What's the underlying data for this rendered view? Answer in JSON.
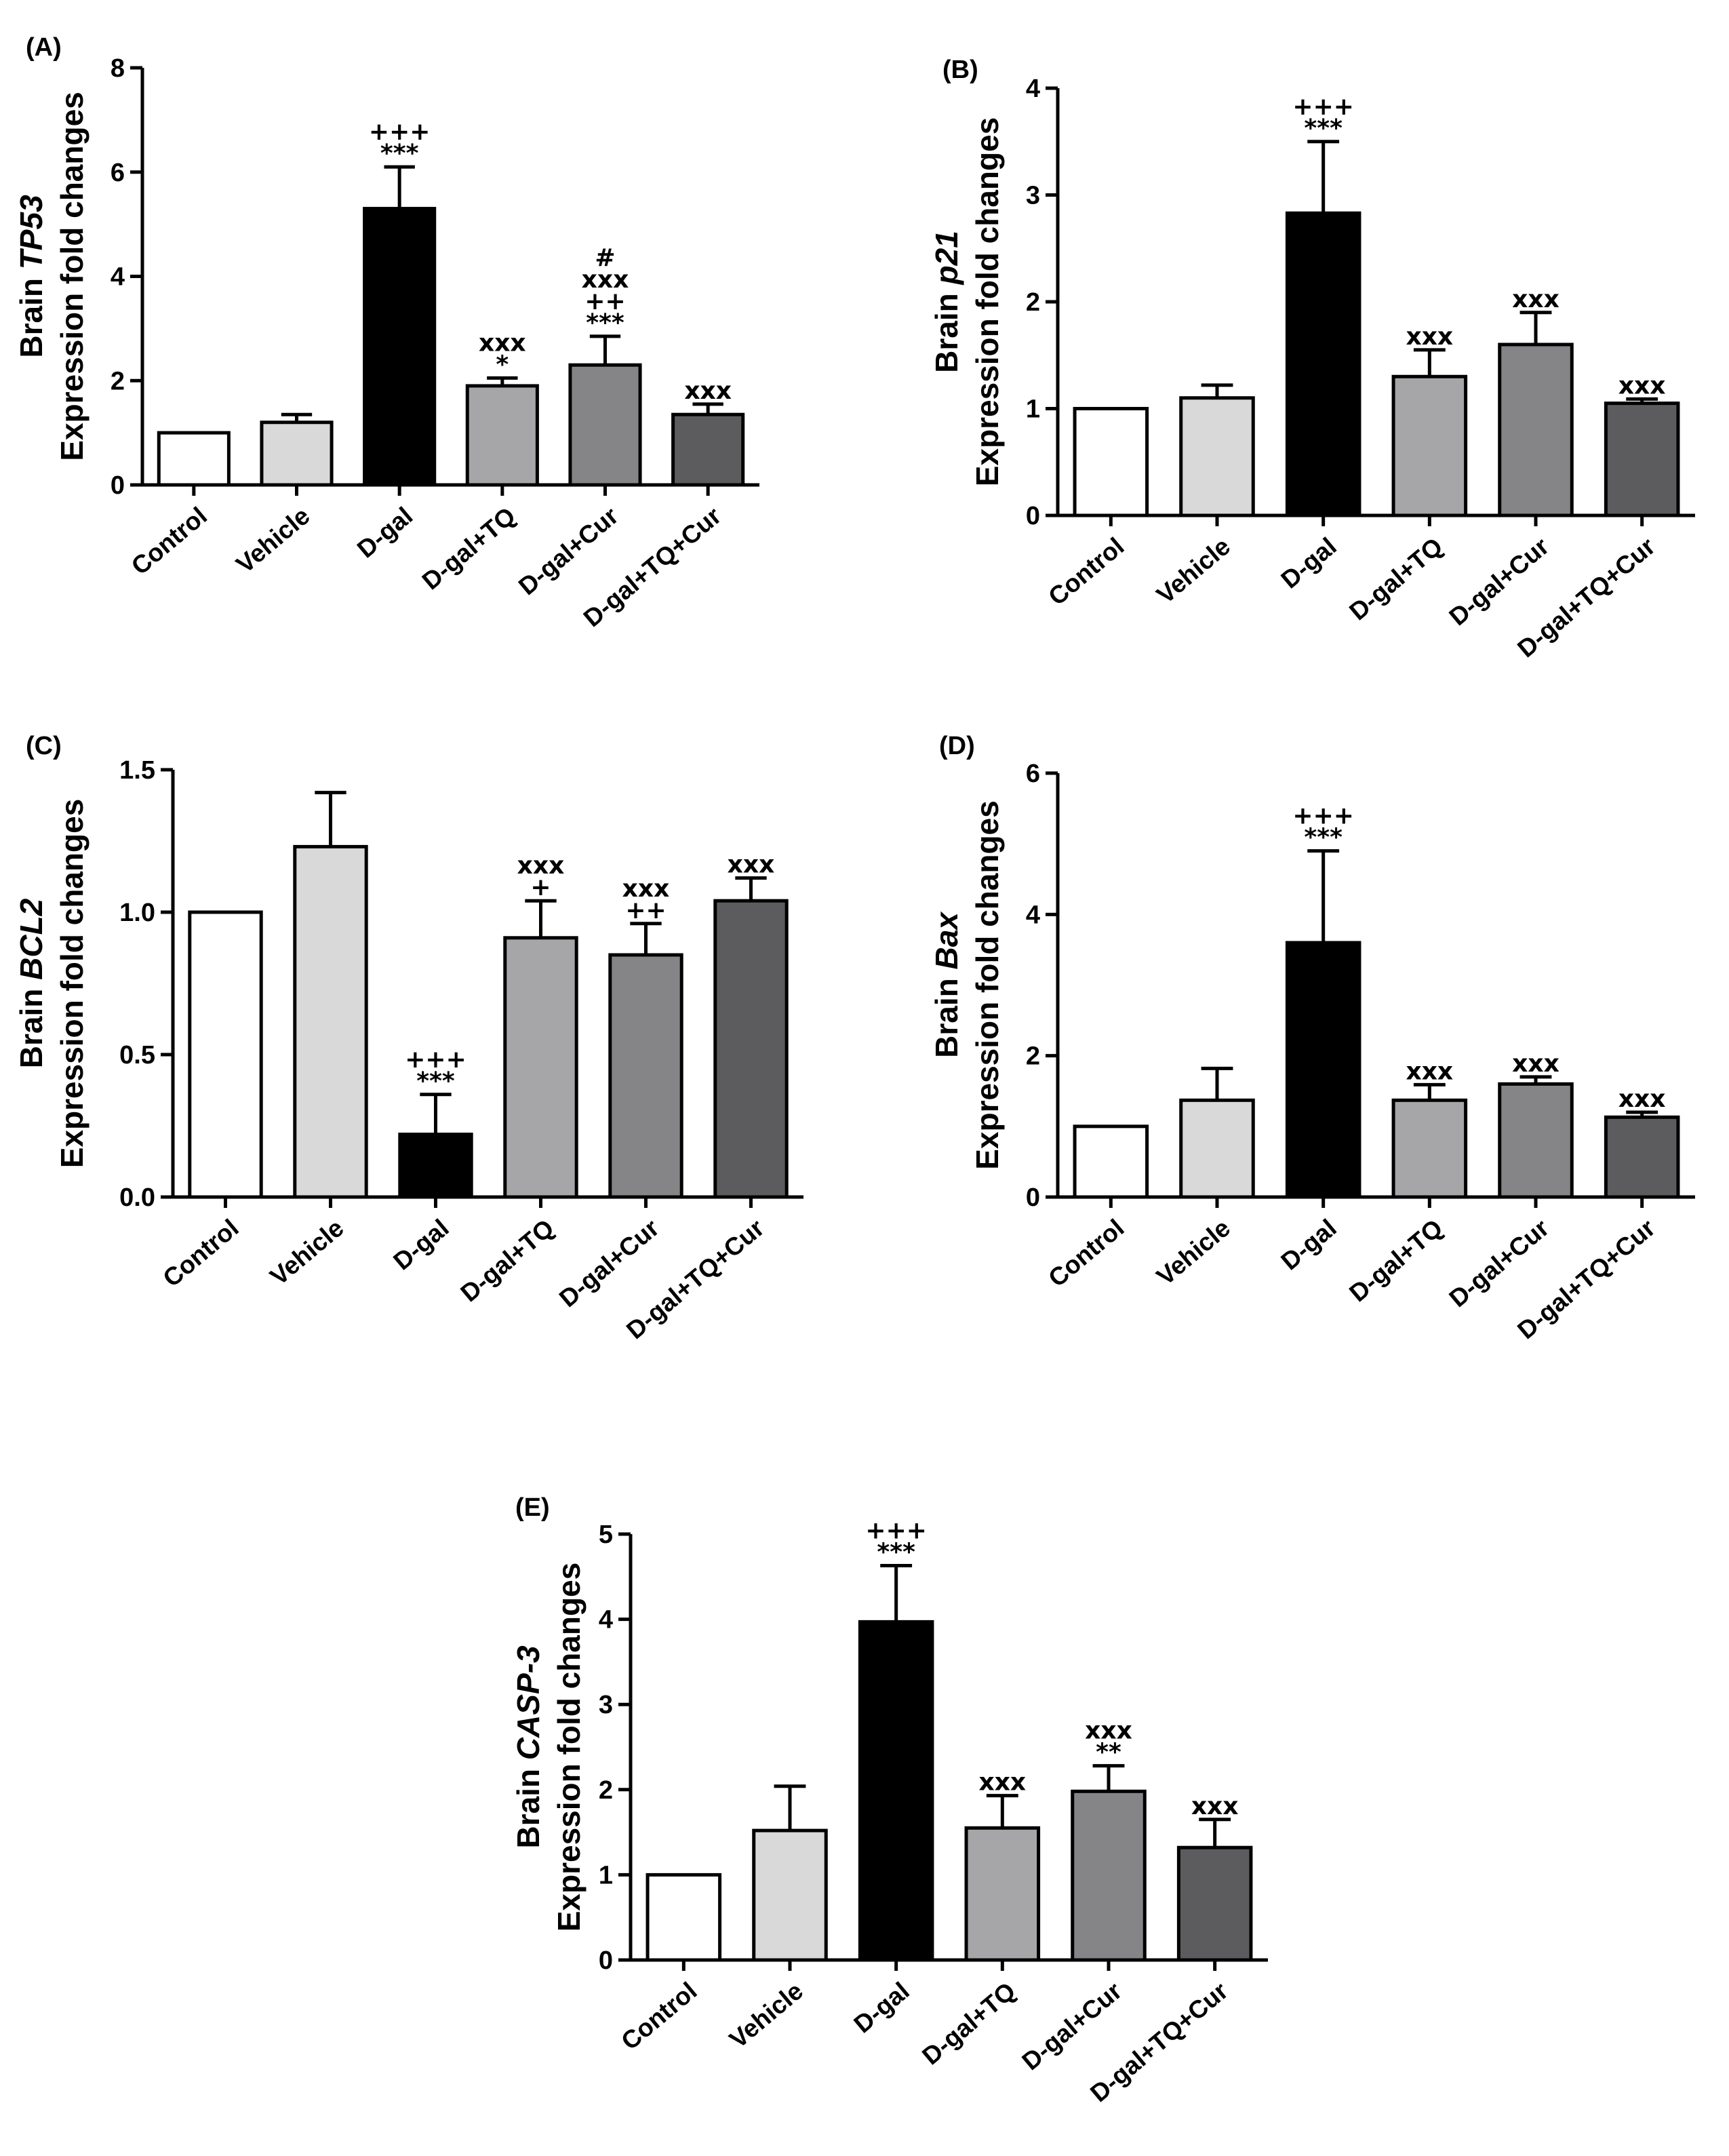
{
  "chart_data": [
    {
      "panel": "(A)",
      "type": "bar",
      "ylabel_prefix": "Brain ",
      "gene": "TP53",
      "ylabel_line2": "Expression fold changes",
      "ylim": [
        0,
        8
      ],
      "yticks": [
        0,
        2,
        4,
        6,
        8
      ],
      "categories": [
        "Control",
        "Vehicle",
        "D-gal",
        "D-gal+TQ",
        "D-gal+Cur",
        "D-gal+TQ+Cur"
      ],
      "values": [
        1.0,
        1.2,
        5.3,
        1.9,
        2.3,
        1.35
      ],
      "errors": [
        0,
        0.15,
        0.8,
        0.15,
        0.55,
        0.2
      ],
      "significance": [
        [],
        [],
        [
          "+++",
          "***"
        ],
        [
          "xxx",
          "*"
        ],
        [
          "#",
          "xxx",
          "++",
          "***"
        ],
        [
          "xxx"
        ]
      ]
    },
    {
      "panel": "(B)",
      "type": "bar",
      "ylabel_prefix": "Brain ",
      "gene": "p21",
      "ylabel_line2": "Expression fold changes",
      "ylim": [
        0,
        4
      ],
      "yticks": [
        0,
        1,
        2,
        3,
        4
      ],
      "categories": [
        "Control",
        "Vehicle",
        "D-gal",
        "D-gal+TQ",
        "D-gal+Cur",
        "D-gal+TQ+Cur"
      ],
      "values": [
        1.0,
        1.1,
        2.83,
        1.3,
        1.6,
        1.05
      ],
      "errors": [
        0,
        0.12,
        0.67,
        0.25,
        0.3,
        0.04
      ],
      "significance": [
        [],
        [],
        [
          "+++",
          "***"
        ],
        [
          "xxx"
        ],
        [
          "xxx"
        ],
        [
          "xxx"
        ]
      ]
    },
    {
      "panel": "(C)",
      "type": "bar",
      "ylabel_prefix": "Brain ",
      "gene": "BCL2",
      "ylabel_line2": "Expression fold changes",
      "ylim": [
        0,
        1.5
      ],
      "yticks": [
        0,
        0.5,
        1.0,
        1.5
      ],
      "ytick_labels": [
        "0.0",
        "0.5",
        "1.0",
        "1.5"
      ],
      "categories": [
        "Control",
        "Vehicle",
        "D-gal",
        "D-gal+TQ",
        "D-gal+Cur",
        "D-gal+TQ+Cur"
      ],
      "values": [
        1.0,
        1.23,
        0.22,
        0.91,
        0.85,
        1.04
      ],
      "errors": [
        0,
        0.19,
        0.14,
        0.13,
        0.11,
        0.08
      ],
      "significance": [
        [],
        [],
        [
          "+++",
          "***"
        ],
        [
          "xxx",
          "+"
        ],
        [
          "xxx",
          "++"
        ],
        [
          "xxx"
        ]
      ]
    },
    {
      "panel": "(D)",
      "type": "bar",
      "ylabel_prefix": "Brain ",
      "gene": "Bax",
      "ylabel_line2": "Expression fold changes",
      "ylim": [
        0,
        6
      ],
      "yticks": [
        0,
        2,
        4,
        6
      ],
      "categories": [
        "Control",
        "Vehicle",
        "D-gal",
        "D-gal+TQ",
        "D-gal+Cur",
        "D-gal+TQ+Cur"
      ],
      "values": [
        1.0,
        1.37,
        3.6,
        1.37,
        1.6,
        1.13
      ],
      "errors": [
        0,
        0.45,
        1.3,
        0.22,
        0.1,
        0.07
      ],
      "significance": [
        [],
        [],
        [
          "+++",
          "***"
        ],
        [
          "xxx"
        ],
        [
          "xxx"
        ],
        [
          "xxx"
        ]
      ]
    },
    {
      "panel": "(E)",
      "type": "bar",
      "ylabel_prefix": "Brain ",
      "gene": "CASP-3",
      "ylabel_line2": "Expression fold changes",
      "ylim": [
        0,
        5
      ],
      "yticks": [
        0,
        1,
        2,
        3,
        4,
        5
      ],
      "categories": [
        "Control",
        "Vehicle",
        "D-gal",
        "D-gal+TQ",
        "D-gal+Cur",
        "D-gal+TQ+Cur"
      ],
      "values": [
        1.0,
        1.52,
        3.97,
        1.55,
        1.98,
        1.32
      ],
      "errors": [
        0,
        0.52,
        0.66,
        0.38,
        0.3,
        0.33
      ],
      "significance": [
        [],
        [],
        [
          "+++",
          "***"
        ],
        [
          "xxx"
        ],
        [
          "xxx",
          "**"
        ],
        [
          "xxx"
        ]
      ]
    }
  ],
  "bar_colors": [
    "#ffffff",
    "#d9d9d9",
    "#000000",
    "#a6a6a8",
    "#858587",
    "#5c5c5e"
  ],
  "stroke_color": "#000000"
}
